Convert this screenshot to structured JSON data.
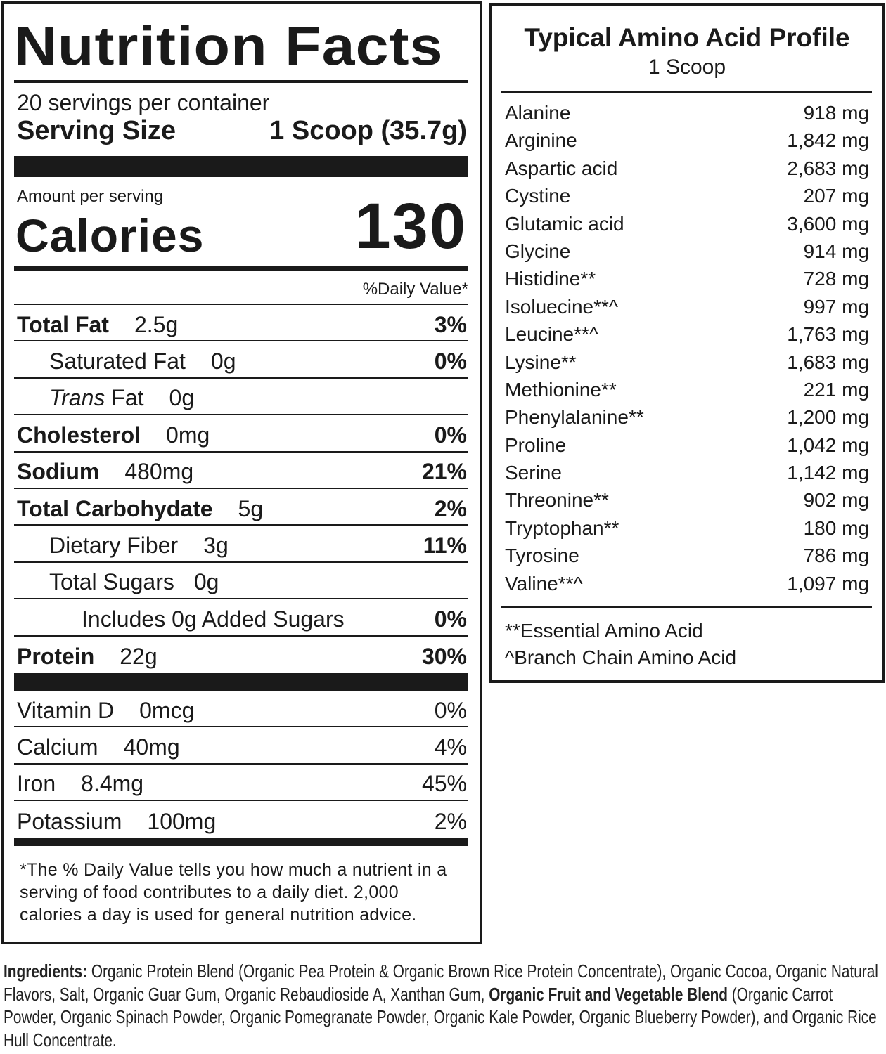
{
  "nutrition": {
    "title": "Nutrition Facts",
    "servings": "20 servings per container",
    "serving_size_label": "Serving Size",
    "serving_size_value": "1 Scoop (35.7g)",
    "amount_per_serving": "Amount per serving",
    "calories_label": "Calories",
    "calories_value": "130",
    "dv_header": "%Daily Value*",
    "rows": [
      {
        "label": "Total Fat",
        "amount": "2.5g",
        "dv": "3%"
      },
      {
        "label": "Saturated Fat",
        "amount": "0g",
        "dv": "0%"
      },
      {
        "label": "Trans",
        "label_rest": " Fat",
        "amount": "0g",
        "dv": ""
      },
      {
        "label": "Cholesterol",
        "amount": "0mg",
        "dv": "0%"
      },
      {
        "label": "Sodium",
        "amount": "480mg",
        "dv": "21%"
      },
      {
        "label": "Total Carbohydate",
        "amount": "5g",
        "dv": "2%"
      },
      {
        "label": "Dietary Fiber",
        "amount": "3g",
        "dv": "11%"
      },
      {
        "label": "Total Sugars",
        "amount": "0g",
        "dv": ""
      },
      {
        "label": "Includes 0g Added Sugars",
        "amount": "",
        "dv": "0%"
      },
      {
        "label": "Protein",
        "amount": "22g",
        "dv": "30%"
      }
    ],
    "vitamins": [
      {
        "label": "Vitamin D",
        "amount": "0mcg",
        "dv": "0%"
      },
      {
        "label": "Calcium",
        "amount": "40mg",
        "dv": "4%"
      },
      {
        "label": "Iron",
        "amount": "8.4mg",
        "dv": "45%"
      },
      {
        "label": "Potassium",
        "amount": "100mg",
        "dv": "2%"
      }
    ],
    "footnote": "*The % Daily Value tells you how much a nutrient in a serving of food contributes to a daily diet. 2,000 calories a day is used for general nutrition advice."
  },
  "amino": {
    "title": "Typical Amino Acid Profile",
    "subtitle": "1 Scoop",
    "rows": [
      {
        "name": "Alanine",
        "value": "918 mg"
      },
      {
        "name": "Arginine",
        "value": "1,842 mg"
      },
      {
        "name": "Aspartic acid",
        "value": "2,683 mg"
      },
      {
        "name": "Cystine",
        "value": "207 mg"
      },
      {
        "name": "Glutamic acid",
        "value": "3,600 mg"
      },
      {
        "name": "Glycine",
        "value": "914 mg"
      },
      {
        "name": "Histidine**",
        "value": "728 mg"
      },
      {
        "name": "Isoluecine**^",
        "value": "997 mg"
      },
      {
        "name": "Leucine**^",
        "value": "1,763 mg"
      },
      {
        "name": "Lysine**",
        "value": "1,683 mg"
      },
      {
        "name": "Methionine**",
        "value": "221 mg"
      },
      {
        "name": "Phenylalanine**",
        "value": "1,200 mg"
      },
      {
        "name": "Proline",
        "value": "1,042 mg"
      },
      {
        "name": "Serine",
        "value": "1,142 mg"
      },
      {
        "name": "Threonine**",
        "value": "902 mg"
      },
      {
        "name": "Tryptophan**",
        "value": "180 mg"
      },
      {
        "name": "Tyrosine",
        "value": "786 mg"
      },
      {
        "name": "Valine**^",
        "value": "1,097 mg"
      }
    ],
    "note1": "**Essential Amino Acid",
    "note2": "^Branch Chain Amino Acid"
  },
  "ingredients": {
    "label": "Ingredients:",
    "part1": " Organic Protein Blend (Organic Pea Protein & Organic Brown Rice Protein Concentrate), Organic Cocoa, Organic Natural Flavors, Salt, Organic Guar Gum, Organic Rebaudioside A, Xanthan Gum, ",
    "bold": "Organic Fruit and Vegetable Blend",
    "part2": " (Organic Carrot Powder, Organic Spinach Powder, Organic Pomegranate Powder, Organic Kale Powder, Organic Blueberry Powder), and Organic Rice Hull Concentrate."
  }
}
